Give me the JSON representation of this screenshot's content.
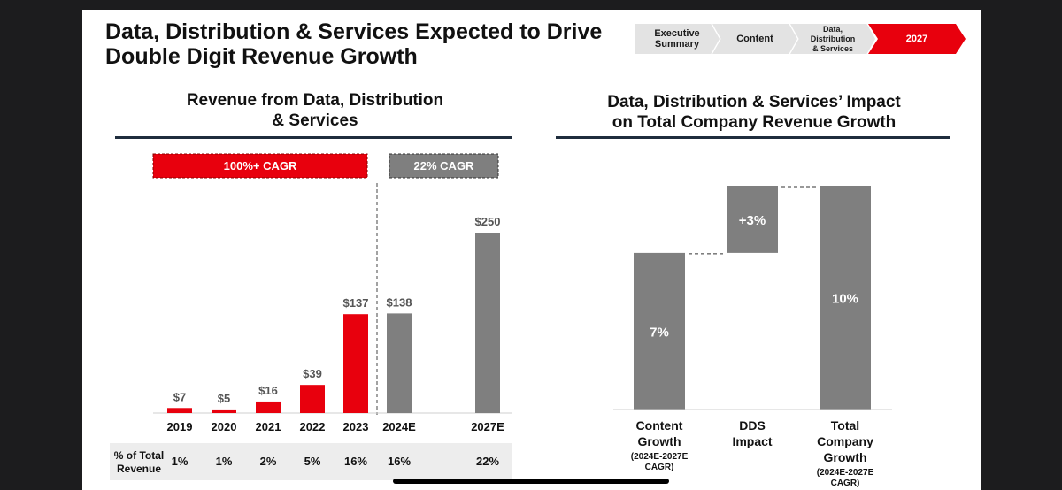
{
  "slide": {
    "title_line1": "Data, Distribution & Services Expected to Drive",
    "title_line2": "Double Digit Revenue Growth"
  },
  "nav": {
    "items": [
      "Executive Summary",
      "Content",
      "Data, Distribution & Services",
      "2027"
    ],
    "active": "2027"
  },
  "colors": {
    "red": "#e8000d",
    "gray": "#7f7f7f",
    "navy": "#1f2d3d"
  },
  "chart_data": [
    {
      "type": "bar",
      "title_line1": "Revenue from Data, Distribution",
      "title_line2": "& Services",
      "categories": [
        "2019",
        "2020",
        "2021",
        "2022",
        "2023",
        "2024E",
        "2027E"
      ],
      "values": [
        7,
        5,
        16,
        39,
        137,
        138,
        250
      ],
      "value_labels": [
        "$7",
        "$5",
        "$16",
        "$39",
        "$137",
        "$138",
        "$250"
      ],
      "series_type": [
        "actual",
        "actual",
        "actual",
        "actual",
        "actual",
        "estimate",
        "estimate"
      ],
      "ylim": [
        0,
        250
      ],
      "annotations": [
        {
          "label": "100%+ CAGR",
          "from": "2019",
          "to": "2023"
        },
        {
          "label": "22% CAGR",
          "from": "2024E",
          "to": "2027E"
        }
      ],
      "table": {
        "label": "% of Total Revenue",
        "values": [
          "1%",
          "1%",
          "2%",
          "5%",
          "16%",
          "16%",
          "22%"
        ]
      }
    },
    {
      "type": "waterfall",
      "title_line1": "Data, Distribution & Services’ Impact",
      "title_line2": "on Total Company Revenue Growth",
      "categories": [
        {
          "lines": [
            "Content",
            "Growth"
          ],
          "sub": [
            "(2024E-2027E",
            "CAGR)"
          ]
        },
        {
          "lines": [
            "DDS",
            "Impact"
          ],
          "sub": []
        },
        {
          "lines": [
            "Total",
            "Company",
            "Growth"
          ],
          "sub": [
            "(2024E-2027E",
            "CAGR)"
          ]
        }
      ],
      "values": [
        7,
        3,
        10
      ],
      "value_labels": [
        "7%",
        "+3%",
        "10%"
      ],
      "kinds": [
        "total",
        "delta",
        "total"
      ]
    }
  ]
}
